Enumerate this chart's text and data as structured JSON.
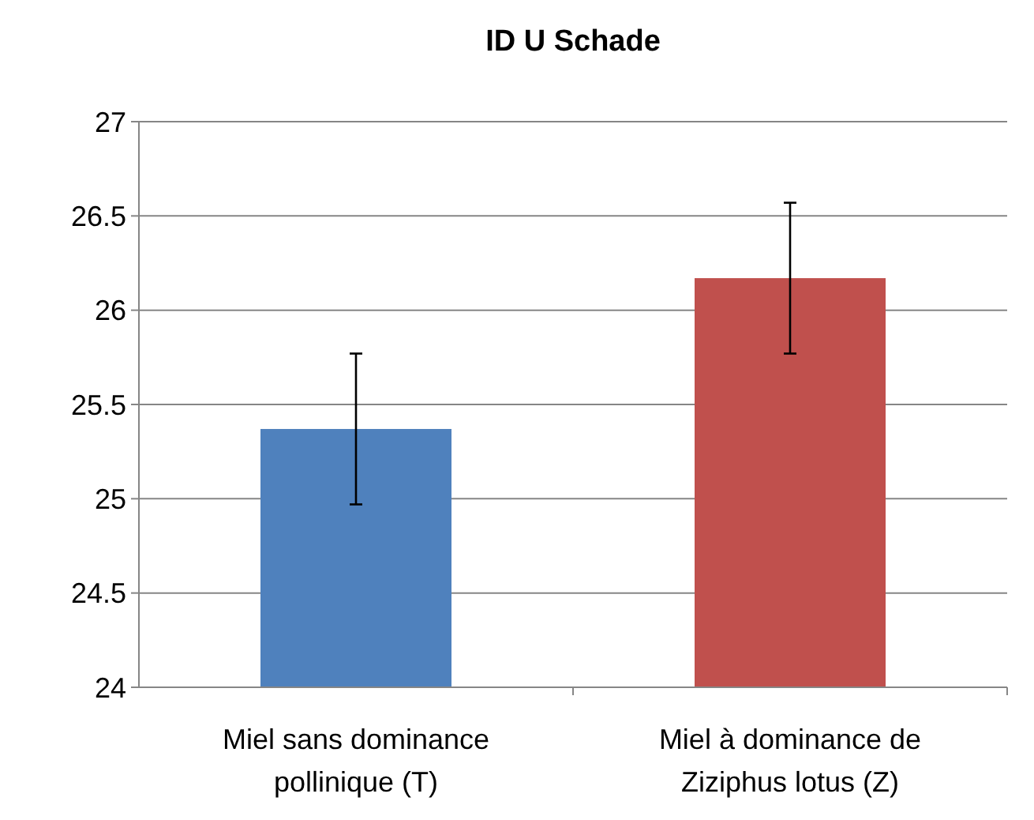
{
  "chart_data": {
    "type": "bar",
    "title": "ID U Schade",
    "categories": [
      "Miel sans dominance pollinique (T)",
      "Miel à dominance de Ziziphus lotus (Z)"
    ],
    "values": [
      25.37,
      26.17
    ],
    "colors": [
      "#4f81bd",
      "#c0504d"
    ],
    "errors": [
      0.4,
      0.4
    ],
    "ylim": [
      24,
      27
    ],
    "yticks": [
      24,
      24.5,
      25,
      25.5,
      26,
      26.5,
      27
    ],
    "grid": "y"
  }
}
